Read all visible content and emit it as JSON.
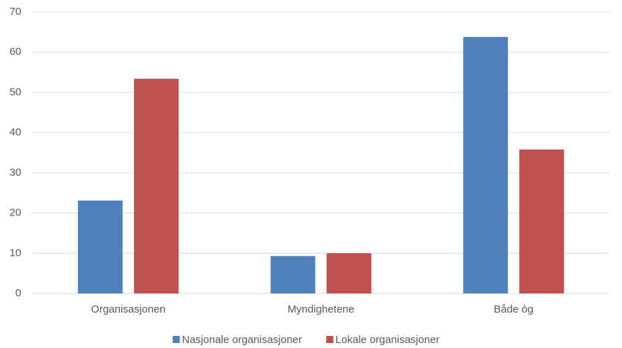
{
  "chart_data": {
    "type": "bar",
    "categories": [
      "Organisasjonen",
      "Myndighetene",
      "Både òg"
    ],
    "series": [
      {
        "name": "Nasjonale organisasjoner",
        "color": "#4f81bd",
        "values": [
          23.1,
          9.3,
          63.8
        ]
      },
      {
        "name": "Lokale organisasjoner",
        "color": "#c0504d",
        "values": [
          53.4,
          10.0,
          35.8
        ]
      }
    ],
    "ylim": [
      0,
      70
    ],
    "yticks": [
      0,
      10,
      20,
      30,
      40,
      50,
      60,
      70
    ],
    "grid": true,
    "legend": "bottom"
  }
}
